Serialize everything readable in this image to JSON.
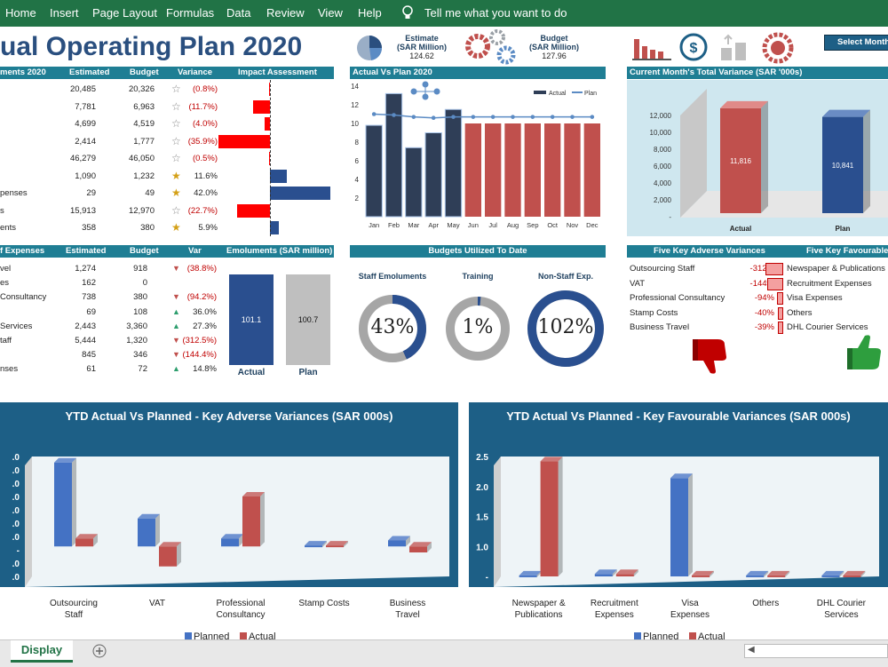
{
  "ribbon": {
    "tabs": [
      "Home",
      "Insert",
      "Page Layout",
      "Formulas",
      "Data",
      "Review",
      "View",
      "Help"
    ],
    "tell_me": "Tell me what you want to do"
  },
  "dashboard": {
    "title": "ual Operating Plan 2020",
    "estimate": {
      "label1": "Estimate",
      "label2": "(SAR Million)",
      "value": "124.62"
    },
    "budget": {
      "label1": "Budget",
      "label2": "(SAR Million)",
      "value": "127.96"
    },
    "select_button": "Select Month"
  },
  "emol_table": {
    "headers": [
      "ments 2020",
      "Estimated",
      "Budget",
      "Variance",
      "Impact Assessment"
    ],
    "rows": [
      {
        "name": "",
        "est": "20,485",
        "bud": "20,326",
        "var": "(0.8%)",
        "neg": true,
        "star": "empty",
        "impact": -0.8
      },
      {
        "name": "",
        "est": "7,781",
        "bud": "6,963",
        "var": "(11.7%)",
        "neg": true,
        "star": "empty",
        "impact": -11.7
      },
      {
        "name": "",
        "est": "4,699",
        "bud": "4,519",
        "var": "(4.0%)",
        "neg": true,
        "star": "empty",
        "impact": -4.0
      },
      {
        "name": "",
        "est": "2,414",
        "bud": "1,777",
        "var": "(35.9%)",
        "neg": true,
        "star": "empty",
        "impact": -35.9
      },
      {
        "name": "",
        "est": "46,279",
        "bud": "46,050",
        "var": "(0.5%)",
        "neg": true,
        "star": "empty",
        "impact": -0.5
      },
      {
        "name": "",
        "est": "1,090",
        "bud": "1,232",
        "var": "11.6%",
        "neg": false,
        "star": "half",
        "impact": 11.6
      },
      {
        "name": "penses",
        "est": "29",
        "bud": "49",
        "var": "42.0%",
        "neg": false,
        "star": "half",
        "impact": 42.0
      },
      {
        "name": "s",
        "est": "15,913",
        "bud": "12,970",
        "var": "(22.7%)",
        "neg": true,
        "star": "empty",
        "impact": -22.7
      },
      {
        "name": "ents",
        "est": "358",
        "bud": "380",
        "var": "5.9%",
        "neg": false,
        "star": "half",
        "impact": 5.9
      }
    ]
  },
  "nonstaff_table": {
    "headers": [
      "f Expenses",
      "Estimated",
      "Budget",
      "Var",
      "Emoluments (SAR million)"
    ],
    "rows": [
      {
        "name": "vel",
        "est": "1,274",
        "bud": "918",
        "var": "(38.8%)",
        "neg": true,
        "arrow": "down"
      },
      {
        "name": "es",
        "est": "162",
        "bud": "0",
        "var": "",
        "neg": false,
        "arrow": "none"
      },
      {
        "name": "Consultancy",
        "est": "738",
        "bud": "380",
        "var": "(94.2%)",
        "neg": true,
        "arrow": "down"
      },
      {
        "name": "",
        "est": "69",
        "bud": "108",
        "var": "36.0%",
        "neg": false,
        "arrow": "up"
      },
      {
        "name": "Services",
        "est": "2,443",
        "bud": "3,360",
        "var": "27.3%",
        "neg": false,
        "arrow": "up"
      },
      {
        "name": "taff",
        "est": "5,444",
        "bud": "1,320",
        "var": "(312.5%)",
        "neg": true,
        "arrow": "down"
      },
      {
        "name": "",
        "est": "845",
        "bud": "346",
        "var": "(144.4%)",
        "neg": true,
        "arrow": "down"
      },
      {
        "name": "nses",
        "est": "61",
        "bud": "72",
        "var": "14.8%",
        "neg": false,
        "arrow": "up"
      }
    ],
    "emol_actual": "101.1",
    "emol_plan": "100.7",
    "emol_actual_label": "Actual",
    "emol_plan_label": "Plan"
  },
  "avp": {
    "header": "Actual Vs Plan 2020",
    "legend_actual": "Actual",
    "legend_plan": "Plan"
  },
  "variance_panel": {
    "header": "Current Month's Total Variance (SAR '000s)",
    "actual_value": "11,816",
    "plan_value": "10,841",
    "actual_label": "Actual",
    "plan_label": "Plan",
    "ticks": [
      "12,000",
      "10,000",
      "8,000",
      "6,000",
      "4,000",
      "2,000",
      "-"
    ]
  },
  "budgets_util": {
    "header": "Budgets Utilized To Date",
    "items": [
      {
        "label": "Staff Emoluments",
        "value": "43%",
        "pct": 43
      },
      {
        "label": "Training",
        "value": "1%",
        "pct": 1
      },
      {
        "label": "Non-Staff Exp.",
        "value": "102%",
        "pct": 102
      }
    ]
  },
  "adverse": {
    "header": "Five Key Adverse Variances",
    "rows": [
      {
        "name": "Outsourcing Staff",
        "value": "-312%"
      },
      {
        "name": "VAT",
        "value": "-144%"
      },
      {
        "name": "Professional Consultancy",
        "value": "-94%"
      },
      {
        "name": "Stamp Costs",
        "value": "-40%"
      },
      {
        "name": "Business Travel",
        "value": "-39%"
      }
    ]
  },
  "favourable": {
    "header": "Five Key Favourable V",
    "rows": [
      "Newspaper & Publications",
      "Recruitment Expenses",
      "Visa Expenses",
      "Others",
      "DHL Courier Services"
    ]
  },
  "chart_data": [
    {
      "type": "bar",
      "title": "Actual Vs Plan 2020",
      "categories": [
        "Jan",
        "Feb",
        "Mar",
        "Apr",
        "May",
        "Jun",
        "Jul",
        "Aug",
        "Sep",
        "Oct",
        "Nov",
        "Dec"
      ],
      "series": [
        {
          "name": "Actual",
          "values": [
            9.8,
            13.2,
            7.4,
            9.0,
            11.5,
            10.0,
            10.0,
            10.0,
            10.0,
            10.0,
            10.0,
            10.0
          ]
        },
        {
          "name": "Plan",
          "values": [
            11.0,
            10.9,
            10.7,
            10.6,
            10.7,
            10.7,
            10.7,
            10.7,
            10.7,
            10.7,
            10.7,
            10.7
          ]
        }
      ],
      "ylim": [
        0,
        14
      ],
      "yticks": [
        "2",
        "4",
        "6",
        "8",
        "10",
        "12",
        "14"
      ]
    },
    {
      "type": "bar",
      "title": "YTD Actual Vs Planned - Key Adverse Variances (SAR 000s)",
      "categories": [
        "Outsourcing Staff",
        "VAT",
        "Professional Consultancy",
        "Stamp Costs",
        "Business Travel"
      ],
      "series": [
        {
          "name": "Planned",
          "values": [
            4.2,
            1.4,
            0.4,
            0.05,
            0.3
          ]
        },
        {
          "name": "Actual",
          "values": [
            0.4,
            -1.0,
            2.5,
            0.05,
            -0.3
          ]
        }
      ],
      "ylim": [
        -1.5,
        4.5
      ],
      "yticks": [
        ".0",
        ".0",
        ".0",
        ".0",
        ".0",
        ".0",
        ".0",
        "-",
        ".0",
        ".0"
      ],
      "legend": [
        "Planned",
        "Actual"
      ]
    },
    {
      "type": "bar",
      "title": "YTD Actual Vs Planned - Key Favourable Variances (SAR 000s)",
      "categories": [
        "Newspaper & Publications",
        "Recruitment Expenses",
        "Visa Expenses",
        "Others",
        "DHL Courier Services"
      ],
      "series": [
        {
          "name": "Planned",
          "values": [
            0.02,
            0.05,
            2.05,
            0.02,
            0.02
          ]
        },
        {
          "name": "Actual",
          "values": [
            2.4,
            0.05,
            0.02,
            0.02,
            0.02
          ]
        }
      ],
      "ylim": [
        0,
        2.5
      ],
      "yticks": [
        "2.5",
        "2.0",
        "1.5",
        "1.0",
        "-"
      ],
      "legend": [
        "Planned",
        "Actual"
      ]
    }
  ],
  "sheet": {
    "tab": "Display"
  }
}
